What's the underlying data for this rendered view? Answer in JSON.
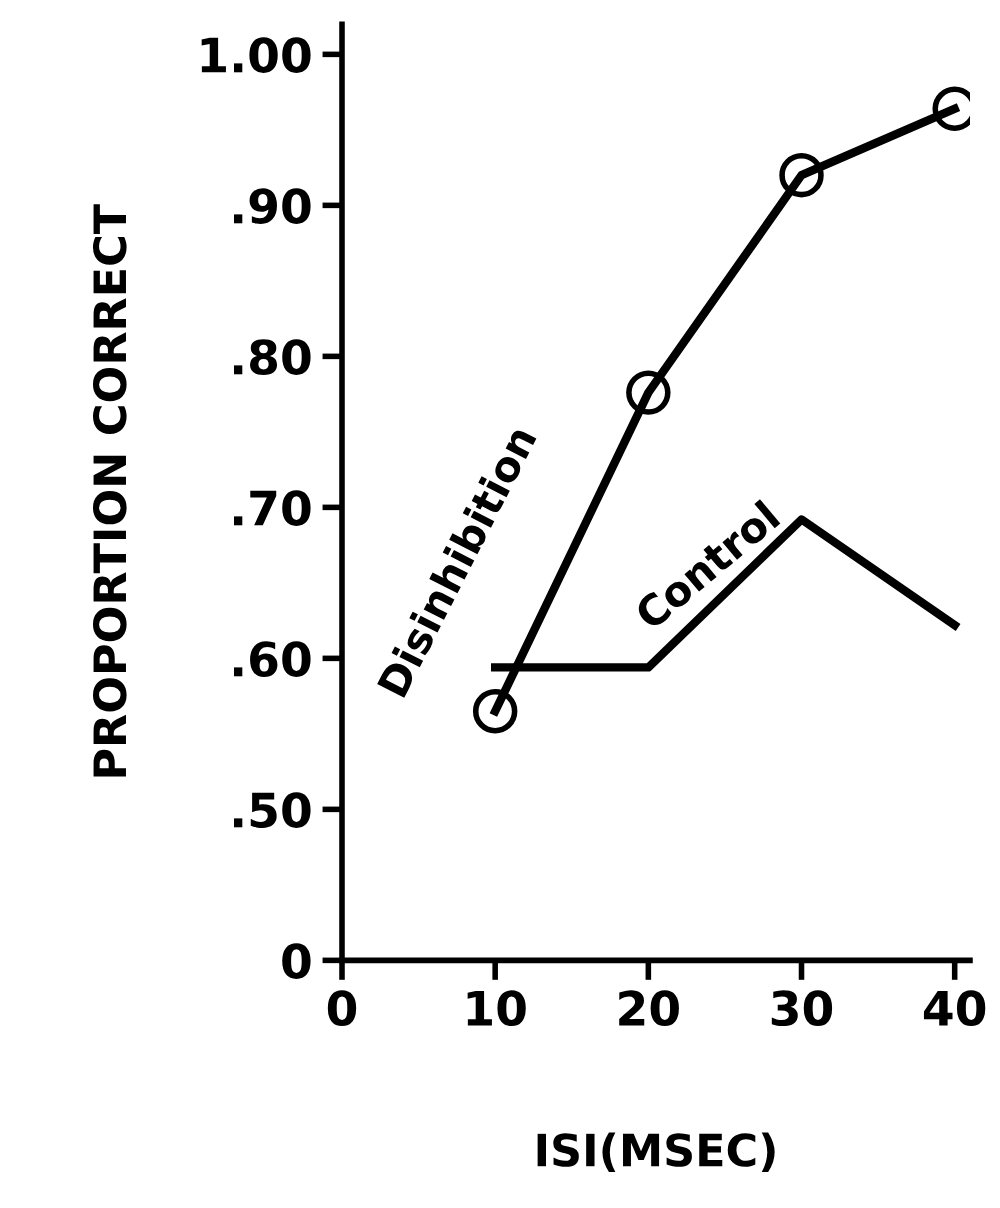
{
  "chart_data": {
    "type": "line",
    "xlabel": "ISI(MSEC)",
    "ylabel": "PROPORTION CORRECT",
    "x": [
      10,
      20,
      30,
      40
    ],
    "series": [
      {
        "name": "Disinhibition",
        "color": "#000000",
        "marker": "circle",
        "values": [
          0.565,
          0.776,
          0.92,
          0.964
        ]
      },
      {
        "name": "Control",
        "color": "#000000",
        "marker": "none",
        "values": [
          0.594,
          0.594,
          0.692,
          0.622
        ]
      }
    ],
    "xlim": [
      0,
      41
    ],
    "xticks": [
      0,
      10,
      20,
      30,
      40
    ],
    "ylim": [
      0.4,
      1.02
    ],
    "yticks": [
      {
        "value": 0.4,
        "label": "0"
      },
      {
        "value": 0.5,
        "label": ".50"
      },
      {
        "value": 0.6,
        "label": ".60"
      },
      {
        "value": 0.7,
        "label": ".70"
      },
      {
        "value": 0.8,
        "label": ".80"
      },
      {
        "value": 0.9,
        "label": ".90"
      },
      {
        "value": 1.0,
        "label": "1.00"
      }
    ],
    "grid": false,
    "legend": false
  }
}
